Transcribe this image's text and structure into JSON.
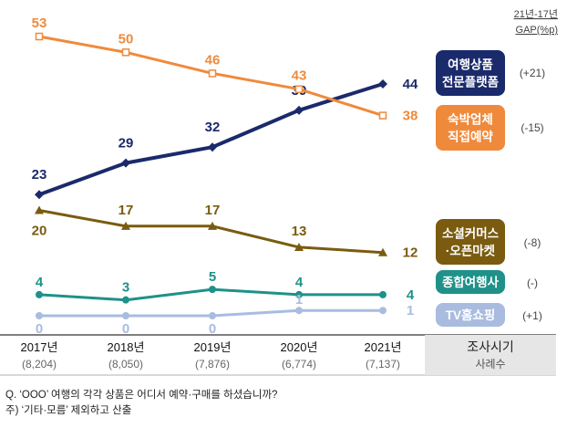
{
  "chart_data": {
    "type": "line",
    "gap_header": {
      "line1": "21년-17년",
      "line2": "GAP(%p)"
    },
    "categories": [
      "2017년",
      "2018년",
      "2019년",
      "2020년",
      "2021년"
    ],
    "sample_sizes": [
      "(8,204)",
      "(8,050)",
      "(7,876)",
      "(6,774)",
      "(7,137)"
    ],
    "table_header": {
      "label": "조사시기",
      "sub": "사례수"
    },
    "series": [
      {
        "name_lines": [
          "여행상품",
          "전문플랫폼"
        ],
        "values": [
          23,
          29,
          32,
          39,
          44
        ],
        "gap": "(+21)",
        "color": "#1b2a6b",
        "marker": "diamond"
      },
      {
        "name_lines": [
          "숙박업체",
          "직접예약"
        ],
        "values": [
          53,
          50,
          46,
          43,
          38
        ],
        "gap": "(-15)",
        "color": "#ef8a3c",
        "marker": "square"
      },
      {
        "name_lines": [
          "소셜커머스",
          "·오픈마켓"
        ],
        "values": [
          20,
          17,
          17,
          13,
          12
        ],
        "gap": "(-8)",
        "color": "#7a5b0f",
        "marker": "triangle"
      },
      {
        "name_lines": [
          "종합여행사"
        ],
        "values": [
          4,
          3,
          5,
          4,
          4
        ],
        "gap": "(-)",
        "color": "#1f9189",
        "marker": "circle"
      },
      {
        "name_lines": [
          "TV홈쇼핑"
        ],
        "values": [
          0,
          0,
          0,
          1,
          1
        ],
        "gap": "(+1)",
        "color": "#a9bce0",
        "marker": "circle"
      }
    ]
  },
  "footnotes": [
    "Q. ‘OOO’ 여행의 각각 상품은 어디서 예약·구매를 하셨습니까?",
    "주) ‘기타·모름’ 제외하고 산출"
  ]
}
